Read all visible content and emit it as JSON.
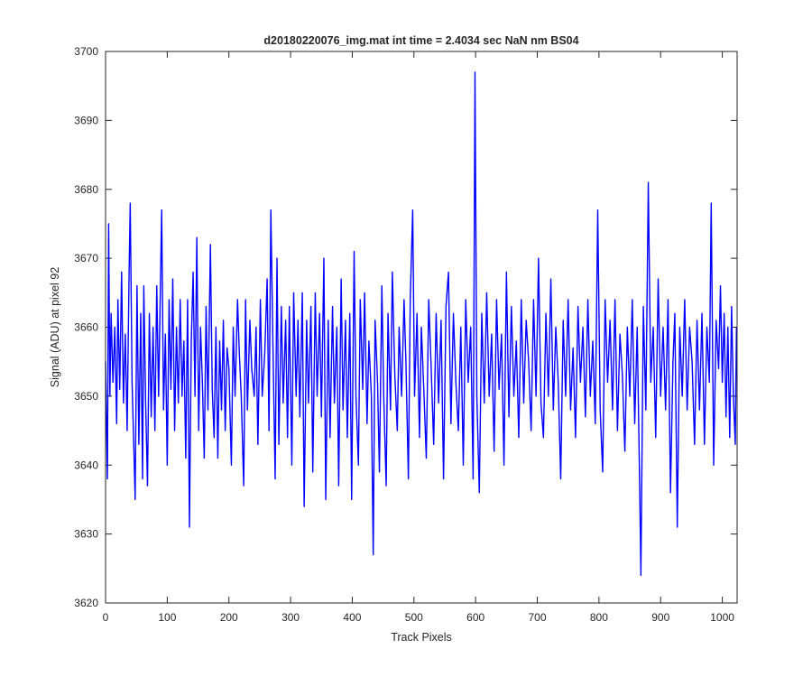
{
  "chart_data": {
    "type": "line",
    "title": "d20180220076_img.mat int time = 2.4034 sec  NaN nm BS04",
    "xlabel": "Track Pixels",
    "ylabel": "Signal (ADU) at pixel 92",
    "xlim": [
      0,
      1024
    ],
    "ylim": [
      3620,
      3700
    ],
    "xticks": [
      0,
      100,
      200,
      300,
      400,
      500,
      600,
      700,
      800,
      900,
      1000
    ],
    "yticks": [
      3620,
      3630,
      3640,
      3650,
      3660,
      3670,
      3680,
      3690,
      3700
    ],
    "grid": false,
    "legend": "none",
    "series": [
      {
        "color": "#0000ff",
        "points": [
          [
            0,
            3655
          ],
          [
            3,
            3638
          ],
          [
            5,
            3675
          ],
          [
            7,
            3650
          ],
          [
            9,
            3662
          ],
          [
            12,
            3652
          ],
          [
            15,
            3660
          ],
          [
            18,
            3646
          ],
          [
            20,
            3664
          ],
          [
            23,
            3651
          ],
          [
            26,
            3668
          ],
          [
            29,
            3649
          ],
          [
            32,
            3659
          ],
          [
            35,
            3645
          ],
          [
            38,
            3667
          ],
          [
            40,
            3678
          ],
          [
            43,
            3652
          ],
          [
            46,
            3642
          ],
          [
            48,
            3635
          ],
          [
            51,
            3666
          ],
          [
            54,
            3643
          ],
          [
            57,
            3662
          ],
          [
            60,
            3638
          ],
          [
            62,
            3666
          ],
          [
            65,
            3649
          ],
          [
            68,
            3637
          ],
          [
            71,
            3662
          ],
          [
            74,
            3647
          ],
          [
            77,
            3660
          ],
          [
            80,
            3645
          ],
          [
            83,
            3666
          ],
          [
            86,
            3650
          ],
          [
            88,
            3661
          ],
          [
            91,
            3677
          ],
          [
            94,
            3648
          ],
          [
            97,
            3659
          ],
          [
            100,
            3640
          ],
          [
            103,
            3664
          ],
          [
            106,
            3651
          ],
          [
            109,
            3667
          ],
          [
            112,
            3645
          ],
          [
            115,
            3660
          ],
          [
            118,
            3649
          ],
          [
            121,
            3664
          ],
          [
            124,
            3650
          ],
          [
            127,
            3658
          ],
          [
            130,
            3641
          ],
          [
            133,
            3664
          ],
          [
            136,
            3631
          ],
          [
            139,
            3658
          ],
          [
            142,
            3668
          ],
          [
            145,
            3650
          ],
          [
            148,
            3673
          ],
          [
            151,
            3645
          ],
          [
            154,
            3660
          ],
          [
            157,
            3652
          ],
          [
            160,
            3641
          ],
          [
            163,
            3663
          ],
          [
            166,
            3648
          ],
          [
            170,
            3672
          ],
          [
            173,
            3651
          ],
          [
            176,
            3644
          ],
          [
            179,
            3660
          ],
          [
            182,
            3641
          ],
          [
            185,
            3658
          ],
          [
            188,
            3648
          ],
          [
            191,
            3661
          ],
          [
            194,
            3645
          ],
          [
            197,
            3657
          ],
          [
            200,
            3654
          ],
          [
            204,
            3640
          ],
          [
            207,
            3660
          ],
          [
            210,
            3650
          ],
          [
            214,
            3664
          ],
          [
            217,
            3656
          ],
          [
            220,
            3650
          ],
          [
            224,
            3637
          ],
          [
            227,
            3664
          ],
          [
            230,
            3648
          ],
          [
            234,
            3661
          ],
          [
            237,
            3654
          ],
          [
            241,
            3650
          ],
          [
            244,
            3660
          ],
          [
            247,
            3643
          ],
          [
            251,
            3664
          ],
          [
            254,
            3650
          ],
          [
            258,
            3656
          ],
          [
            262,
            3667
          ],
          [
            265,
            3645
          ],
          [
            268,
            3677
          ],
          [
            272,
            3654
          ],
          [
            275,
            3638
          ],
          [
            278,
            3670
          ],
          [
            281,
            3643
          ],
          [
            285,
            3663
          ],
          [
            288,
            3649
          ],
          [
            292,
            3661
          ],
          [
            295,
            3644
          ],
          [
            298,
            3663
          ],
          [
            302,
            3640
          ],
          [
            305,
            3665
          ],
          [
            309,
            3650
          ],
          [
            312,
            3661
          ],
          [
            315,
            3647
          ],
          [
            319,
            3665
          ],
          [
            322,
            3634
          ],
          [
            326,
            3661
          ],
          [
            329,
            3649
          ],
          [
            333,
            3663
          ],
          [
            336,
            3639
          ],
          [
            340,
            3665
          ],
          [
            343,
            3650
          ],
          [
            347,
            3662
          ],
          [
            350,
            3647
          ],
          [
            354,
            3670
          ],
          [
            357,
            3635
          ],
          [
            361,
            3661
          ],
          [
            364,
            3644
          ],
          [
            368,
            3663
          ],
          [
            371,
            3649
          ],
          [
            375,
            3660
          ],
          [
            378,
            3637
          ],
          [
            382,
            3667
          ],
          [
            385,
            3648
          ],
          [
            389,
            3661
          ],
          [
            392,
            3644
          ],
          [
            396,
            3662
          ],
          [
            399,
            3635
          ],
          [
            403,
            3671
          ],
          [
            406,
            3650
          ],
          [
            410,
            3640
          ],
          [
            413,
            3664
          ],
          [
            417,
            3651
          ],
          [
            420,
            3665
          ],
          [
            424,
            3646
          ],
          [
            427,
            3658
          ],
          [
            431,
            3650
          ],
          [
            434,
            3627
          ],
          [
            437,
            3661
          ],
          [
            441,
            3652
          ],
          [
            444,
            3639
          ],
          [
            448,
            3666
          ],
          [
            451,
            3650
          ],
          [
            455,
            3637
          ],
          [
            458,
            3662
          ],
          [
            462,
            3648
          ],
          [
            465,
            3668
          ],
          [
            469,
            3653
          ],
          [
            473,
            3645
          ],
          [
            476,
            3660
          ],
          [
            480,
            3650
          ],
          [
            484,
            3664
          ],
          [
            487,
            3655
          ],
          [
            491,
            3638
          ],
          [
            494,
            3664
          ],
          [
            498,
            3677
          ],
          [
            501,
            3650
          ],
          [
            505,
            3662
          ],
          [
            509,
            3644
          ],
          [
            512,
            3660
          ],
          [
            516,
            3651
          ],
          [
            520,
            3641
          ],
          [
            524,
            3664
          ],
          [
            528,
            3654
          ],
          [
            532,
            3643
          ],
          [
            536,
            3662
          ],
          [
            540,
            3649
          ],
          [
            544,
            3661
          ],
          [
            548,
            3638
          ],
          [
            552,
            3663
          ],
          [
            556,
            3668
          ],
          [
            560,
            3646
          ],
          [
            564,
            3662
          ],
          [
            568,
            3652
          ],
          [
            572,
            3645
          ],
          [
            576,
            3660
          ],
          [
            580,
            3640
          ],
          [
            584,
            3664
          ],
          [
            588,
            3652
          ],
          [
            592,
            3660
          ],
          [
            596,
            3638
          ],
          [
            599,
            3697
          ],
          [
            602,
            3650
          ],
          [
            606,
            3636
          ],
          [
            610,
            3662
          ],
          [
            614,
            3649
          ],
          [
            618,
            3665
          ],
          [
            622,
            3650
          ],
          [
            626,
            3659
          ],
          [
            630,
            3642
          ],
          [
            634,
            3664
          ],
          [
            638,
            3651
          ],
          [
            642,
            3659
          ],
          [
            646,
            3640
          ],
          [
            650,
            3668
          ],
          [
            654,
            3647
          ],
          [
            658,
            3663
          ],
          [
            662,
            3650
          ],
          [
            666,
            3658
          ],
          [
            670,
            3644
          ],
          [
            674,
            3664
          ],
          [
            678,
            3649
          ],
          [
            682,
            3661
          ],
          [
            686,
            3655
          ],
          [
            690,
            3645
          ],
          [
            694,
            3664
          ],
          [
            698,
            3650
          ],
          [
            702,
            3670
          ],
          [
            706,
            3649
          ],
          [
            710,
            3644
          ],
          [
            714,
            3662
          ],
          [
            718,
            3650
          ],
          [
            722,
            3667
          ],
          [
            726,
            3648
          ],
          [
            730,
            3660
          ],
          [
            734,
            3652
          ],
          [
            738,
            3638
          ],
          [
            742,
            3661
          ],
          [
            746,
            3650
          ],
          [
            750,
            3664
          ],
          [
            754,
            3648
          ],
          [
            758,
            3657
          ],
          [
            762,
            3644
          ],
          [
            766,
            3663
          ],
          [
            770,
            3652
          ],
          [
            774,
            3660
          ],
          [
            778,
            3647
          ],
          [
            782,
            3664
          ],
          [
            786,
            3650
          ],
          [
            790,
            3658
          ],
          [
            794,
            3646
          ],
          [
            798,
            3677
          ],
          [
            802,
            3648
          ],
          [
            806,
            3639
          ],
          [
            810,
            3664
          ],
          [
            814,
            3652
          ],
          [
            818,
            3661
          ],
          [
            822,
            3648
          ],
          [
            826,
            3664
          ],
          [
            830,
            3645
          ],
          [
            834,
            3659
          ],
          [
            838,
            3653
          ],
          [
            842,
            3642
          ],
          [
            846,
            3660
          ],
          [
            850,
            3650
          ],
          [
            854,
            3664
          ],
          [
            858,
            3646
          ],
          [
            862,
            3660
          ],
          [
            866,
            3637
          ],
          [
            868,
            3624
          ],
          [
            872,
            3663
          ],
          [
            876,
            3648
          ],
          [
            880,
            3681
          ],
          [
            884,
            3652
          ],
          [
            888,
            3660
          ],
          [
            892,
            3644
          ],
          [
            896,
            3667
          ],
          [
            900,
            3650
          ],
          [
            904,
            3660
          ],
          [
            908,
            3648
          ],
          [
            912,
            3664
          ],
          [
            916,
            3636
          ],
          [
            920,
            3655
          ],
          [
            923,
            3662
          ],
          [
            927,
            3631
          ],
          [
            931,
            3660
          ],
          [
            935,
            3650
          ],
          [
            939,
            3664
          ],
          [
            943,
            3648
          ],
          [
            947,
            3660
          ],
          [
            951,
            3655
          ],
          [
            955,
            3643
          ],
          [
            959,
            3661
          ],
          [
            963,
            3648
          ],
          [
            967,
            3662
          ],
          [
            971,
            3643
          ],
          [
            975,
            3660
          ],
          [
            979,
            3652
          ],
          [
            982,
            3678
          ],
          [
            986,
            3640
          ],
          [
            990,
            3661
          ],
          [
            994,
            3654
          ],
          [
            997,
            3666
          ],
          [
            1000,
            3652
          ],
          [
            1003,
            3662
          ],
          [
            1006,
            3647
          ],
          [
            1009,
            3660
          ],
          [
            1012,
            3644
          ],
          [
            1015,
            3663
          ],
          [
            1018,
            3650
          ],
          [
            1021,
            3643
          ],
          [
            1023,
            3660
          ]
        ]
      }
    ]
  }
}
